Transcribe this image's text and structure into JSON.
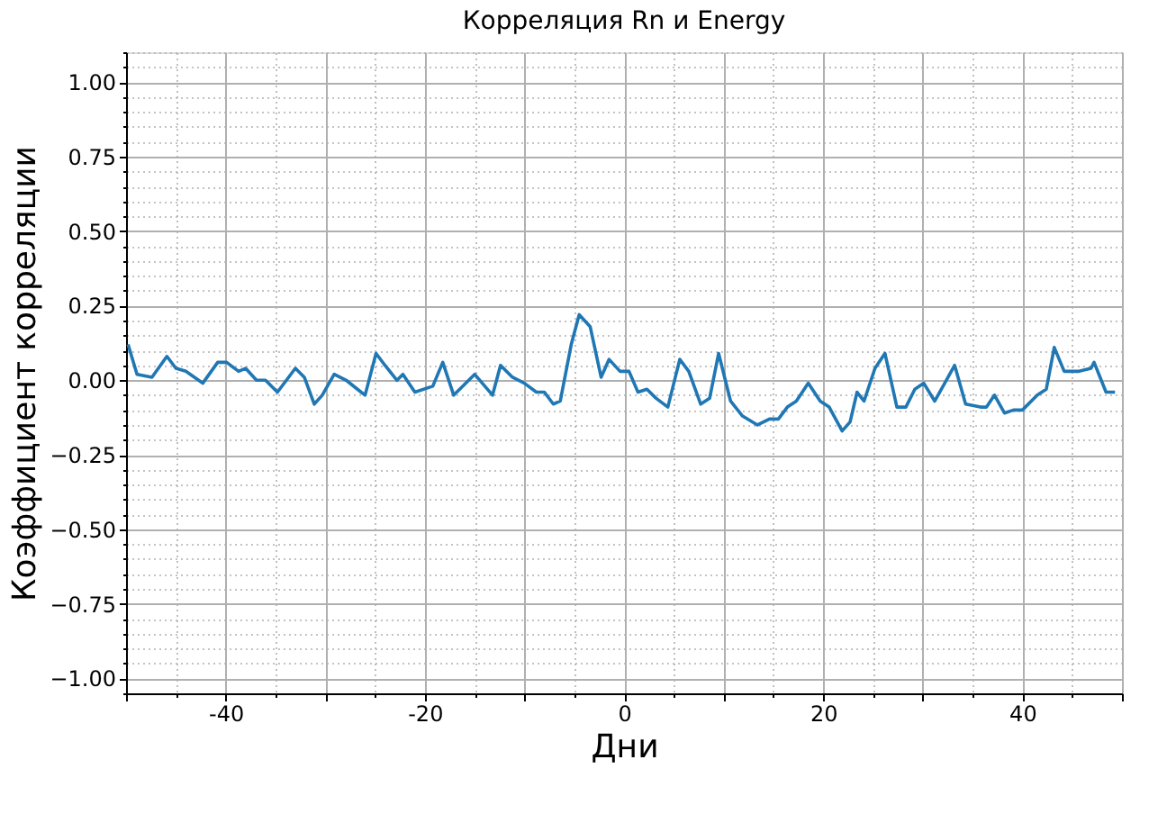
{
  "chart_data": {
    "type": "line",
    "title": "Корреляция Rn и Energy",
    "xlabel": "Дни",
    "ylabel": "Коэффициент корреляции",
    "xlim": [
      -50,
      50
    ],
    "ylim": [
      -1.05,
      1.1
    ],
    "xticks": [
      {
        "value": -50,
        "label": null
      },
      -40,
      {
        "value": -30,
        "label": null
      },
      -20,
      {
        "value": -10,
        "label": null
      },
      0,
      {
        "value": 10,
        "label": null
      },
      20,
      {
        "value": 30,
        "label": null
      },
      40,
      {
        "value": 50,
        "label": null
      }
    ],
    "yticks": [
      {
        "value": -1,
        "label": "−1.00"
      },
      {
        "value": -0.75,
        "label": "−0.75"
      },
      {
        "value": -0.5,
        "label": "−0.50"
      },
      {
        "value": -0.25,
        "label": "−0.25"
      },
      {
        "value": 0,
        "label": "0.00"
      },
      {
        "value": 0.25,
        "label": "0.25"
      },
      {
        "value": 0.5,
        "label": "0.50"
      },
      {
        "value": 0.75,
        "label": "0.75"
      },
      {
        "value": 1,
        "label": "1.00"
      }
    ],
    "grid": true,
    "marker": "none",
    "line_style": "solid",
    "series": [
      {
        "color": "#1f77b4",
        "x": [
          -49.8,
          -48.9,
          -47.4,
          -45.9,
          -45,
          -44,
          -42.3,
          -40.8,
          -39.9,
          -38.7,
          -38,
          -36.9,
          -36,
          -34.8,
          -33,
          -32.1,
          -31.1,
          -30.3,
          -29.1,
          -27.9,
          -26.4,
          -26,
          -24.9,
          -24,
          -22.8,
          -22.2,
          -21,
          -19.2,
          -18.2,
          -17.1,
          -15,
          -13.2,
          -12.4,
          -11.2,
          -10,
          -8.8,
          -8,
          -7.1,
          -6.4,
          -5.3,
          -4.5,
          -3.4,
          -2.3,
          -1.5,
          -0.4,
          0.5,
          1.4,
          2.3,
          3.2,
          4.4,
          5.6,
          6.5,
          7.7,
          8.6,
          9.5,
          10.7,
          11.9,
          13.4,
          14.6,
          15.5,
          16.4,
          17.3,
          18.5,
          19.7,
          20.6,
          21.9,
          22.7,
          23.4,
          24.1,
          25.2,
          26.2,
          27.4,
          28.3,
          29.2,
          30.1,
          31.2,
          32.2,
          33.2,
          34.3,
          35.8,
          36.4,
          37.2,
          38.2,
          39.1,
          40,
          41.5,
          42.4,
          43.2,
          44.2,
          45.7,
          46.9,
          47.2,
          48.4,
          49.3
        ],
        "values": [
          0.12,
          0.02,
          0.01,
          0.08,
          0.04,
          0.03,
          -0.01,
          0.06,
          0.06,
          0.03,
          0.04,
          0.0,
          0.0,
          -0.04,
          0.04,
          0.01,
          -0.08,
          -0.05,
          0.02,
          0.0,
          -0.04,
          -0.05,
          0.09,
          0.05,
          0.0,
          0.02,
          -0.04,
          -0.02,
          0.06,
          -0.05,
          0.02,
          -0.05,
          0.05,
          0.01,
          -0.01,
          -0.04,
          -0.04,
          -0.08,
          -0.07,
          0.12,
          0.22,
          0.18,
          0.01,
          0.07,
          0.03,
          0.03,
          -0.04,
          -0.03,
          -0.06,
          -0.09,
          0.07,
          0.03,
          -0.08,
          -0.06,
          0.09,
          -0.07,
          -0.12,
          -0.15,
          -0.13,
          -0.13,
          -0.09,
          -0.07,
          -0.01,
          -0.07,
          -0.09,
          -0.17,
          -0.14,
          -0.04,
          -0.07,
          0.04,
          0.09,
          -0.09,
          -0.09,
          -0.03,
          -0.01,
          -0.07,
          -0.01,
          0.05,
          -0.08,
          -0.09,
          -0.09,
          -0.05,
          -0.11,
          -0.1,
          -0.1,
          -0.05,
          -0.03,
          0.11,
          0.03,
          0.03,
          0.04,
          0.06,
          -0.04,
          -0.04
        ]
      }
    ]
  }
}
